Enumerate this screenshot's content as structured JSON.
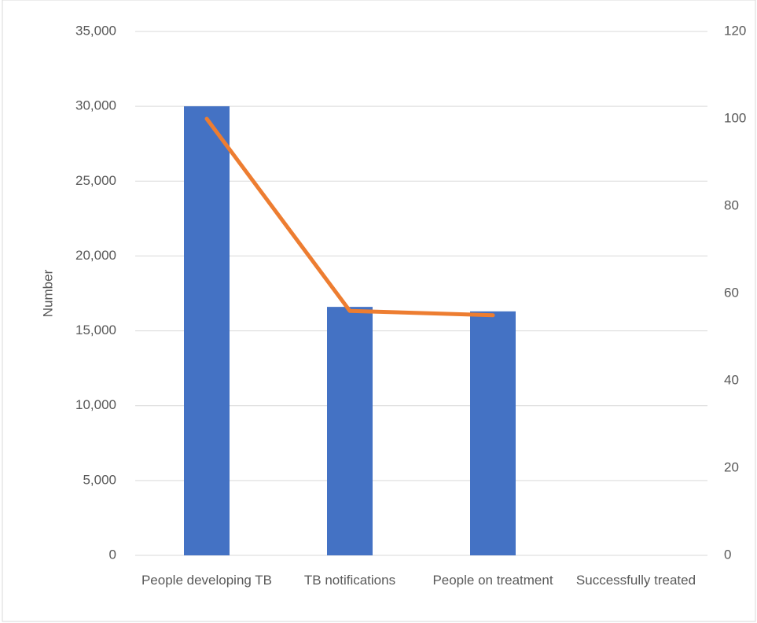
{
  "chart_data": {
    "type": "bar",
    "y_label": "Number",
    "categories": [
      "People developing TB",
      "TB notifications",
      "People on treatment",
      "Successfully treated"
    ],
    "series": [
      {
        "type": "bar",
        "color": "#4472c4",
        "values": [
          30000,
          16600,
          16300,
          null
        ]
      },
      {
        "type": "line",
        "color": "#ed7d31",
        "axis": "y2",
        "values": [
          100,
          56,
          55,
          null
        ]
      }
    ],
    "ylim": [
      0,
      35000
    ],
    "yticks": [
      {
        "value": 0,
        "label": "0"
      },
      {
        "value": 5000,
        "label": "5,000"
      },
      {
        "value": 10000,
        "label": "10,000"
      },
      {
        "value": 15000,
        "label": "15,000"
      },
      {
        "value": 20000,
        "label": "20,000"
      },
      {
        "value": 25000,
        "label": "25,000"
      },
      {
        "value": 30000,
        "label": "30,000"
      },
      {
        "value": 35000,
        "label": "35,000"
      }
    ],
    "y2lim": [
      0,
      120
    ],
    "y2ticks": [
      0,
      20,
      40,
      60,
      80,
      100,
      120
    ],
    "grid": true
  }
}
